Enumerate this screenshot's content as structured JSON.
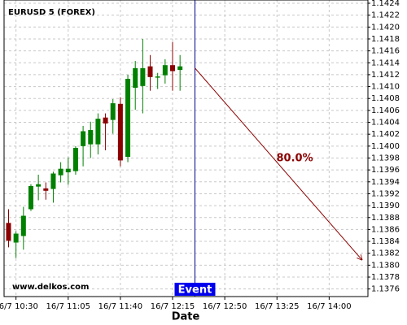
{
  "chart_data": {
    "type": "candlestick",
    "title": "EURUSD 5 (FOREX)",
    "watermark": "www.delkos.com",
    "xlabel": "Date",
    "x": [
      625,
      630,
      635,
      640,
      645,
      650,
      655,
      660,
      665,
      670,
      675,
      680,
      685,
      690,
      695,
      700,
      705,
      710,
      715,
      720,
      725,
      730,
      735,
      740
    ],
    "open": [
      1.13871,
      1.13838,
      1.13849,
      1.13894,
      1.13932,
      1.13929,
      1.13928,
      1.13951,
      1.13956,
      1.13958,
      1.14,
      1.14003,
      1.14003,
      1.14048,
      1.14044,
      1.14071,
      1.13982,
      1.14098,
      1.14101,
      1.14134,
      1.14115,
      1.14119,
      1.14136,
      1.14128
    ],
    "high": [
      1.13894,
      1.13857,
      1.13898,
      1.13936,
      1.13952,
      1.13939,
      1.13957,
      1.13973,
      1.13981,
      1.14,
      1.14034,
      1.14041,
      1.14055,
      1.14055,
      1.14079,
      1.14082,
      1.1412,
      1.14143,
      1.1418,
      1.14153,
      1.14123,
      1.14146,
      1.14175,
      1.14153
    ],
    "low": [
      1.1383,
      1.13812,
      1.13826,
      1.13891,
      1.13909,
      1.1391,
      1.13905,
      1.13939,
      1.13935,
      1.13952,
      1.13966,
      1.1398,
      1.13986,
      1.13993,
      1.14021,
      1.13966,
      1.13973,
      1.14061,
      1.14055,
      1.14093,
      1.14096,
      1.14105,
      1.14093,
      1.14093
    ],
    "close": [
      1.13841,
      1.13853,
      1.13883,
      1.13933,
      1.13936,
      1.13925,
      1.13954,
      1.13962,
      1.13962,
      1.13997,
      1.14025,
      1.14027,
      1.14046,
      1.14038,
      1.14072,
      1.13976,
      1.14113,
      1.14131,
      1.14131,
      1.14116,
      1.14117,
      1.14136,
      1.14126,
      1.14134
    ],
    "up_color": "#008000",
    "down_color": "#8b0000",
    "event": {
      "x": 750,
      "label": "Event",
      "color": "#00008b"
    },
    "forecast": {
      "label": "80.0%",
      "x": [
        750,
        862
      ],
      "y": [
        1.14131,
        1.13809
      ],
      "color": "#8b0000"
    },
    "xlim": [
      622,
      866
    ],
    "ylim": [
      1.1375,
      1.1424
    ],
    "xticks": [
      {
        "value": 630,
        "label": "16/7 10:30"
      },
      {
        "value": 665,
        "label": "16/7 11:05"
      },
      {
        "value": 700,
        "label": "16/7 11:40"
      },
      {
        "value": 735,
        "label": "16/7 12:15"
      },
      {
        "value": 770,
        "label": "16/7 12:50"
      },
      {
        "value": 805,
        "label": "16/7 13:25"
      },
      {
        "value": 840,
        "label": "16/7 14:00"
      }
    ],
    "yticks": [
      1.1376,
      1.1378,
      {
        "value": 1.138,
        "label": "1.1380"
      },
      1.1382,
      1.1384,
      1.1386,
      1.1388,
      {
        "value": 1.139,
        "label": "1.1390"
      },
      1.1392,
      1.1394,
      1.1396,
      1.1398,
      {
        "value": 1.14,
        "label": "1.1400"
      },
      1.1402,
      1.1404,
      1.1406,
      1.1408,
      {
        "value": 1.141,
        "label": "1.1410"
      },
      1.1412,
      1.1414,
      1.1416,
      1.1418,
      {
        "value": 1.142,
        "label": "1.1420"
      },
      1.1422,
      1.1424
    ],
    "grid": true
  }
}
